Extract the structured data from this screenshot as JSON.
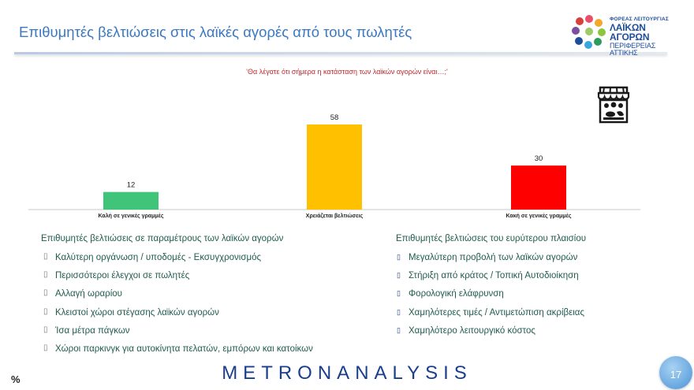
{
  "header": {
    "title": "Επιθυμητές βελτιώσεις στις λαϊκές αγορές από τους πωλητές"
  },
  "logo": {
    "line1": "ΦΟΡΕΑΣ ΛΕΙΤΟΥΡΓΙΑΣ",
    "line2": "ΛΑΪΚΩΝ ΑΓΟΡΩΝ",
    "line3": "ΠΕΡΙΦΕΡΕΙΑΣ ΑΤΤΙΚΗΣ"
  },
  "question": "'Θα λέγατε ότι σήμερα η κατάσταση των λαϊκών αγορών είναι…;'",
  "chart_data": {
    "type": "bar",
    "categories": [
      "Καλή σε γενικές γραμμές",
      "Χρειάζεται βελτιώσεις",
      "Κακή σε γενικές γραμμές"
    ],
    "values": [
      12,
      58,
      30
    ],
    "colors": [
      "#3fc47a",
      "#ffc000",
      "#ff0000"
    ],
    "ylim": [
      0,
      70
    ],
    "data_labels": true,
    "grid": false
  },
  "icons": {
    "market": "market-stall-icon",
    "bullet": "square-bullet-icon"
  },
  "left_column": {
    "heading": "Επιθυμητές βελτιώσεις σε παραμέτρους των λαϊκών αγορών",
    "items": [
      "Καλύτερη οργάνωση / υποδομές - Εκσυγχρονισμός",
      "Περισσότεροι έλεγχοι σε πωλητές",
      "Αλλαγή ωραρίου",
      "Κλειστοί χώροι στέγασης λαϊκών αγορών",
      "Ίσα μέτρα πάγκων",
      "Χώροι παρκινγκ για αυτοκίνητα πελατών, εμπόρων και κατοίκων"
    ]
  },
  "right_column": {
    "heading": "Επιθυμητές βελτιώσεις του ευρύτερου πλαισίου",
    "items": [
      "Μεγαλύτερη προβολή των λαϊκών αγορών",
      "Στήριξη από κράτος / Τοπική Αυτοδιοίκηση",
      "Φορολογική ελάφρυνση",
      "Χαμηλότερες τιμές / Αντιμετώπιση ακρίβειας",
      "Χαμηλότερο λειτουργικό κόστος"
    ]
  },
  "footer": {
    "brand": "METRONANALYSIS",
    "percent_sign": "%",
    "page_number": "17"
  }
}
